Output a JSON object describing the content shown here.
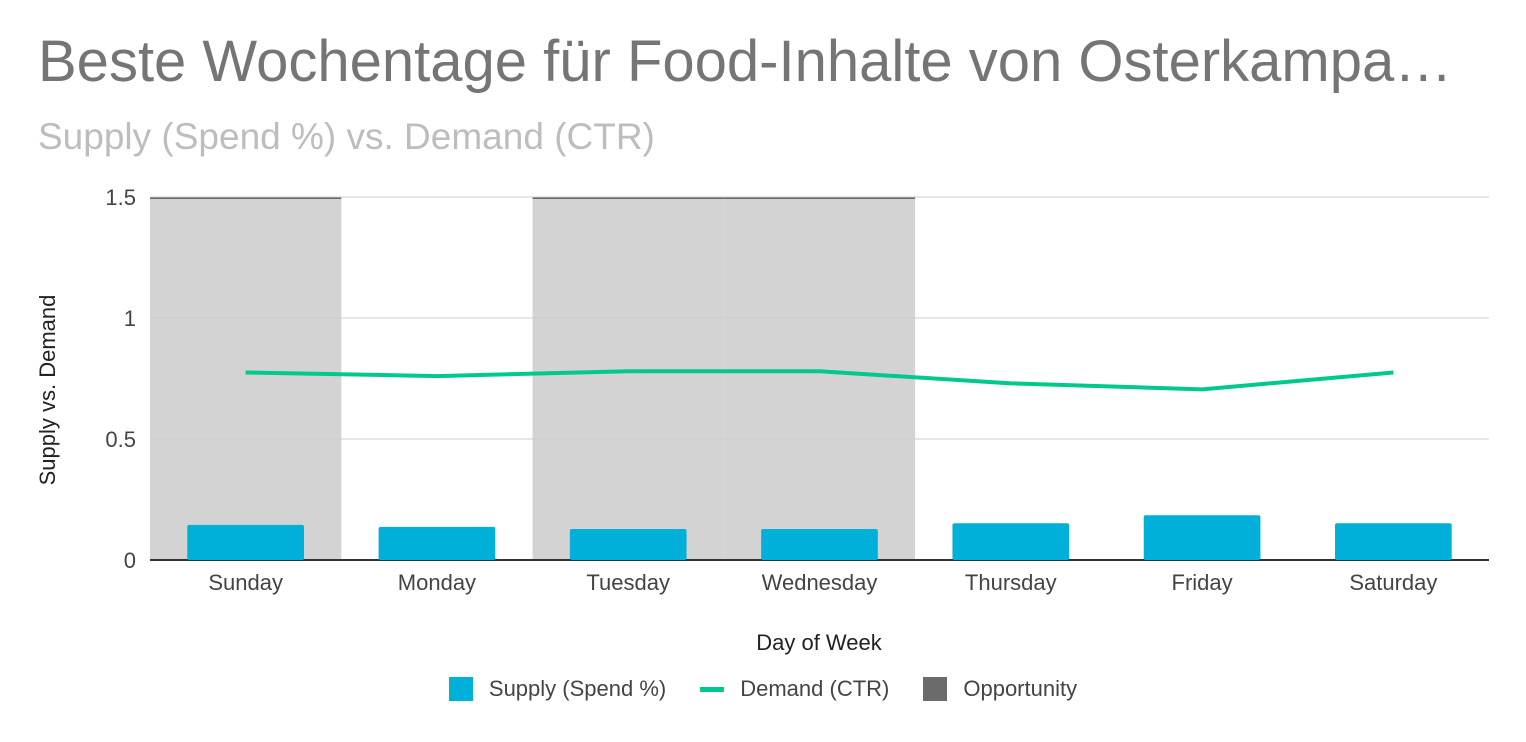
{
  "chart_data": {
    "type": "bar",
    "title": "Beste Wochentage für Food-Inhalte von Osterkampa…",
    "subtitle": "Supply (Spend %) vs. Demand (CTR)",
    "xlabel": "Day of Week",
    "ylabel": "Supply vs. Demand",
    "ylim": [
      0,
      1.5
    ],
    "yticks": [
      0,
      0.5,
      1,
      1.5
    ],
    "ytick_labels": [
      "0",
      "0.5",
      "1",
      "1.5"
    ],
    "categories": [
      "Sunday",
      "Monday",
      "Tuesday",
      "Wednesday",
      "Thursday",
      "Friday",
      "Saturday"
    ],
    "series": [
      {
        "name": "Supply (Spend %)",
        "type": "bar",
        "color": "#00b0d8",
        "values": [
          0.145,
          0.137,
          0.128,
          0.128,
          0.152,
          0.185,
          0.152
        ]
      },
      {
        "name": "Demand (CTR)",
        "type": "line",
        "color": "#00c98d",
        "values": [
          0.775,
          0.76,
          0.78,
          0.78,
          0.73,
          0.705,
          0.775
        ]
      },
      {
        "name": "Opportunity",
        "type": "bar",
        "color": "#d3d3d3",
        "legend_color": "#6b6b6b",
        "values": [
          1.5,
          0,
          1.5,
          1.5,
          0,
          0,
          0
        ]
      }
    ],
    "grid": true,
    "legend_position": "bottom"
  }
}
